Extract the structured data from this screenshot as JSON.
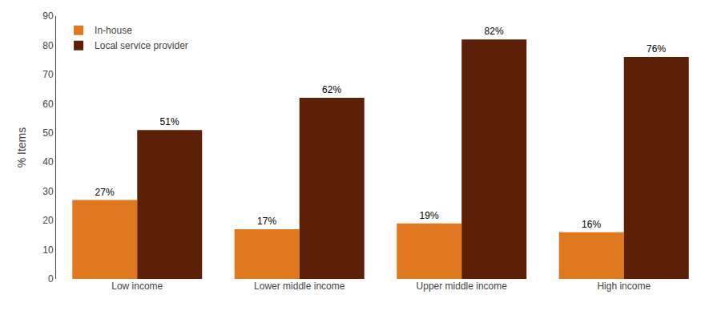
{
  "chart_data": {
    "type": "bar",
    "categories": [
      "Low income",
      "Lower middle income",
      "Upper middle income",
      "High income"
    ],
    "series": [
      {
        "name": "In-house",
        "color": "#E07820",
        "values": [
          27,
          17,
          19,
          16
        ],
        "value_labels": [
          "27%",
          "17%",
          "19%",
          "16%"
        ]
      },
      {
        "name": "Local service provider",
        "color": "#5C2008",
        "values": [
          51,
          62,
          82,
          76
        ],
        "value_labels": [
          "51%",
          "62%",
          "82%",
          "76%"
        ]
      }
    ],
    "ylabel": "% Items",
    "ylim": [
      0,
      90
    ],
    "yticks": [
      0,
      10,
      20,
      30,
      40,
      50,
      60,
      70,
      80,
      90
    ],
    "grid": false,
    "legend": "upper left",
    "data_labels": true
  }
}
